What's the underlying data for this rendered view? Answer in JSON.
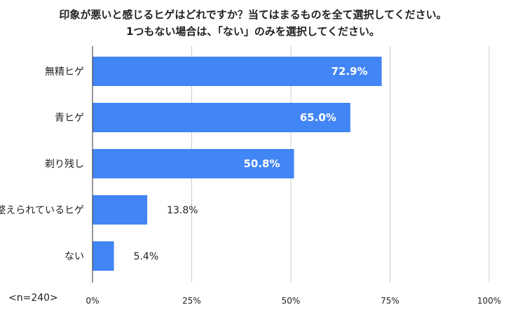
{
  "chart_data": {
    "type": "bar",
    "orientation": "horizontal",
    "title_lines": [
      "印象が悪いと感じるヒゲはどれですか？当てはまるものを全て選択してください。",
      "1つもない場合は、「ない」のみを選択してください。"
    ],
    "categories": [
      "無精ヒゲ",
      "青ヒゲ",
      "剃り残し",
      "整えられているヒゲ",
      "ない"
    ],
    "values": [
      72.9,
      65.0,
      50.8,
      13.8,
      5.4
    ],
    "value_labels": [
      "72.9%",
      "65.0%",
      "50.8%",
      "13.8%",
      "5.4%"
    ],
    "xlim": [
      0,
      100
    ],
    "x_ticks": [
      0,
      25,
      50,
      75,
      100
    ],
    "x_tick_labels": [
      "0%",
      "25%",
      "50%",
      "75%",
      "100%"
    ],
    "grid": true,
    "bar_color": "#4285f4",
    "inside_label_color": "#ffffff",
    "outside_label_color": "#222222",
    "grid_color": "#cccccc",
    "sample_note": "<n=240>"
  }
}
